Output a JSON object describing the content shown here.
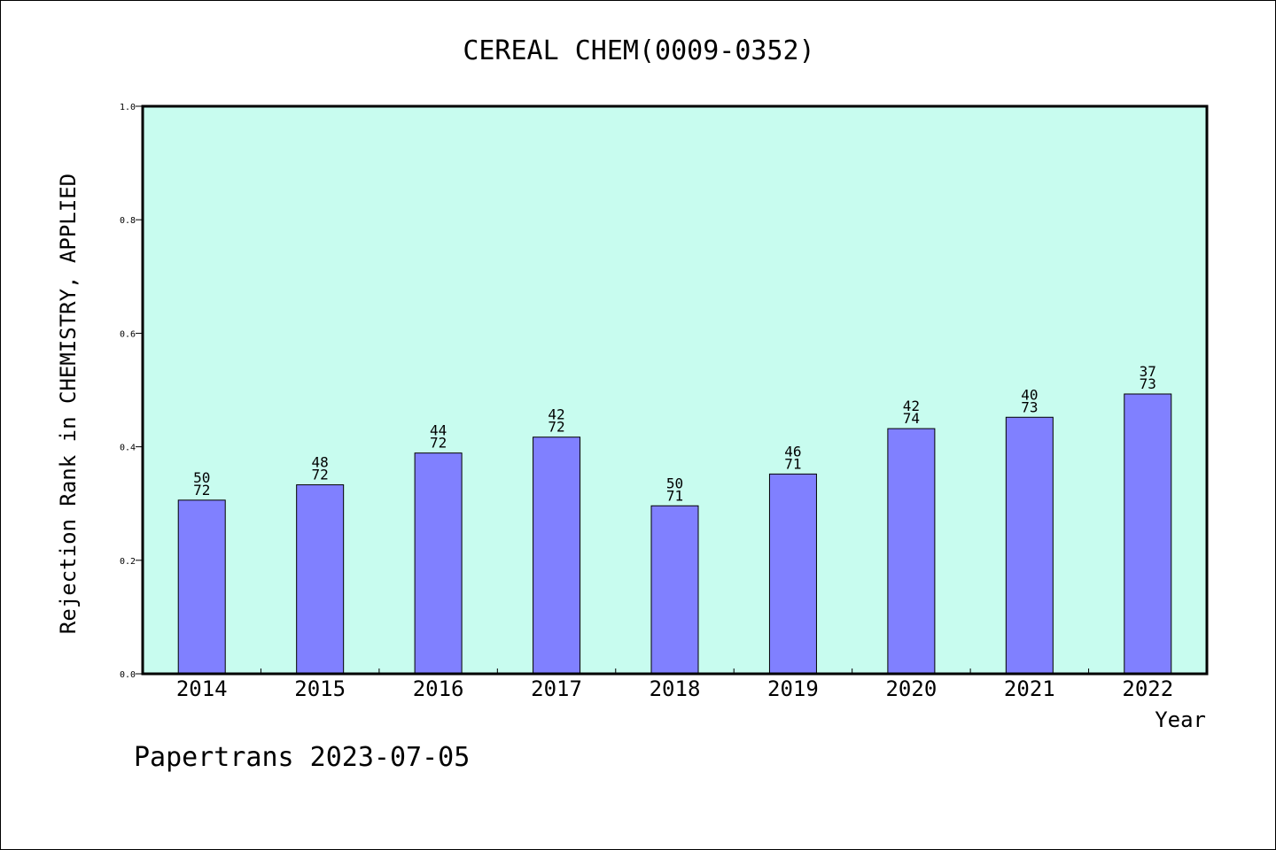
{
  "chart_data": {
    "type": "bar",
    "title": "CEREAL CHEM(0009-0352)",
    "xlabel": "Year",
    "ylabel": "Rejection Rank in CHEMISTRY, APPLIED",
    "ylim": [
      0,
      1.0
    ],
    "yticks": [
      "0.0",
      "0.2",
      "0.4",
      "0.6",
      "0.8",
      "1.0"
    ],
    "categories": [
      "2014",
      "2015",
      "2016",
      "2017",
      "2018",
      "2019",
      "2020",
      "2021",
      "2022"
    ],
    "values": [
      0.306,
      0.333,
      0.389,
      0.417,
      0.296,
      0.352,
      0.432,
      0.452,
      0.493
    ],
    "label_top": [
      "50",
      "48",
      "44",
      "42",
      "50",
      "46",
      "42",
      "40",
      "37"
    ],
    "label_bottom": [
      "72",
      "72",
      "72",
      "72",
      "71",
      "71",
      "74",
      "73",
      "73"
    ],
    "colors": {
      "plot_background": "#c8fcef",
      "bar_fill": "#8080ff",
      "bar_stroke": "#000000"
    },
    "grid": false,
    "legend": "none"
  },
  "footer": {
    "watermark": "Papertrans 2023-07-05"
  }
}
